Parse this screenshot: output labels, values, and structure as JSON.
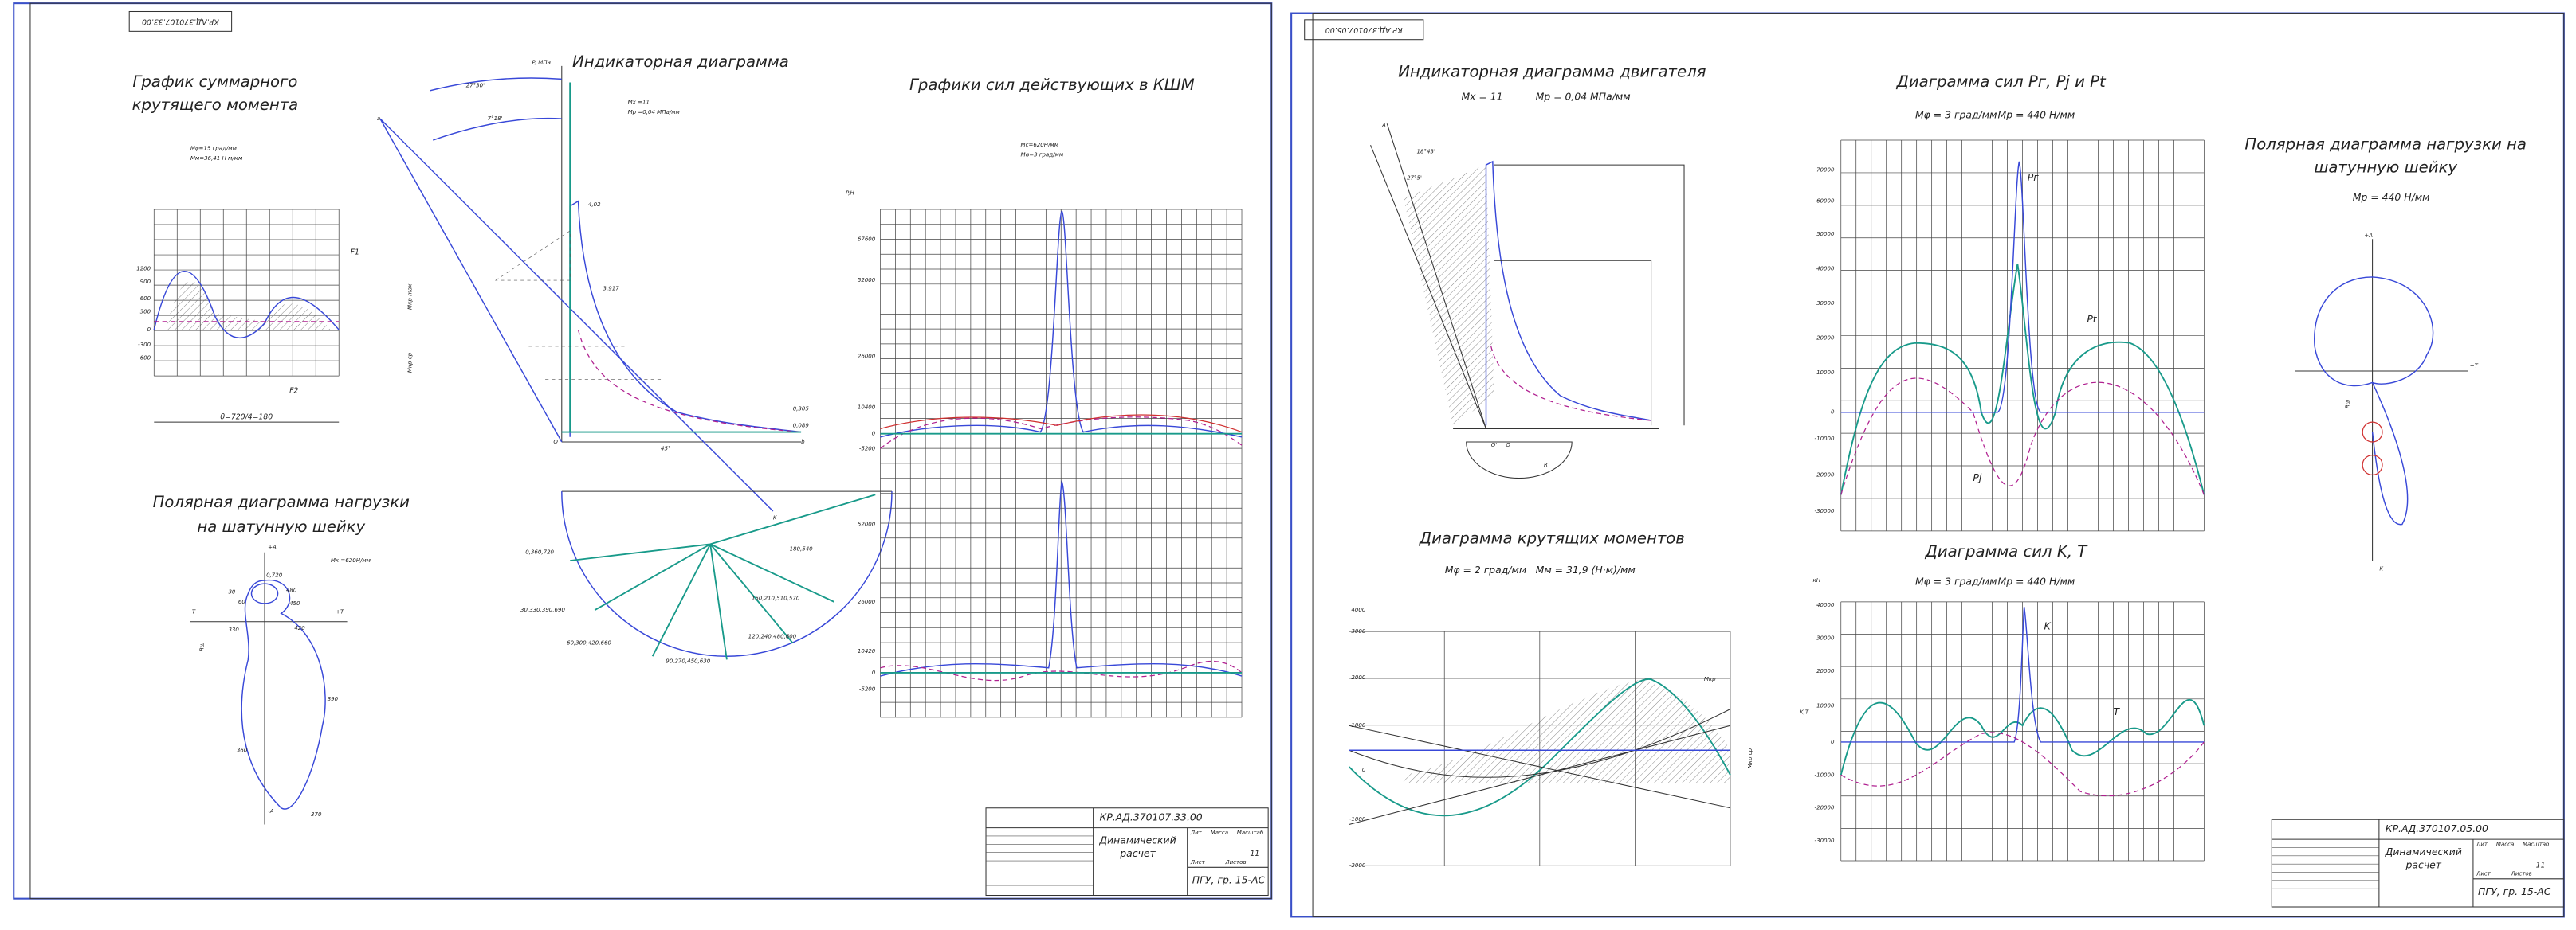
{
  "left_sheet": {
    "stamp": "КР.АД.370107.33.00",
    "torque": {
      "title": [
        "График суммарного",
        "крутящего момента"
      ],
      "scales": [
        "Мφ=15 град/мм",
        "Мм=36,41 Н·м/мм"
      ],
      "y_labels": [
        "1200",
        "900",
        "600",
        "300",
        "0",
        "-300",
        "-600"
      ],
      "labels": [
        "F1",
        "F2",
        "Мкр max",
        "Мкр ср"
      ],
      "caption": "θ=720/4=180"
    },
    "polar": {
      "title": [
        "Полярная диаграмма нагрузки",
        "на шатунную шейку"
      ],
      "scale": "Мк =620Н/мм",
      "labels": [
        "+A",
        "-A",
        "-T",
        "+T",
        "0,720",
        "30",
        "60",
        "480",
        "450",
        "330",
        "420",
        "390",
        "360",
        "370",
        "Rш"
      ]
    },
    "indicator": {
      "title": "Индикаторная диаграмма",
      "axis": "P, МПа",
      "scales": [
        "Мх =11",
        "Мр =0,04 МПа/мм"
      ],
      "labels": [
        "27°30'",
        "7°18'",
        "4,02",
        "3,917",
        "0,305",
        "0,089",
        "45°",
        "a",
        "b",
        "K",
        "O"
      ],
      "crank_labels": [
        "0,360,720",
        "30,330,390,690",
        "60,300,420,660",
        "90,270,450,630",
        "120,240,480,600",
        "150,210,510,570",
        "180,540"
      ]
    },
    "forces": {
      "title": "Графики сил действующих в КШМ",
      "scales": [
        "Мс=620Н/мм",
        "Мφ=3 град/мм"
      ],
      "axis": "P,Н",
      "y_labels_top": [
        "67600",
        "52000",
        "26000",
        "10400",
        "0",
        "-5200"
      ],
      "y_labels_bottom": [
        "52000",
        "26000",
        "10420",
        "0",
        "-5200"
      ]
    },
    "title_block": {
      "code": "КР.АД.370107.33.00",
      "name": [
        "Динамический",
        "расчет"
      ],
      "group": "ПГУ, гр. 15-АС",
      "sheet": "11",
      "heads": [
        "Лит",
        "Масса",
        "Масштаб",
        "Лист",
        "Листов"
      ]
    }
  },
  "right_sheet": {
    "stamp": "КР.АД.370107.05.00",
    "indicator": {
      "title": "Индикаторная диаграмма двигателя",
      "scales": [
        "Mх = 11",
        "Mр = 0,04 МПа/мм"
      ],
      "labels": [
        "18°43'",
        "27°5'",
        "O'",
        "O",
        "R",
        "A"
      ]
    },
    "torque": {
      "title": "Диаграмма крутящих моментов",
      "scales": [
        "Mφ = 2 град/мм",
        "Mм = 31,9 (Н·м)/мм"
      ],
      "y_labels": [
        "4000",
        "3000",
        "2000",
        "1000",
        "0",
        "-1000",
        "-2000"
      ],
      "labels": [
        "Mкр",
        "Mкр.ср"
      ]
    },
    "forces_p": {
      "title": "Диаграмма сил Pг, Pj и Pt",
      "scales": [
        "Mφ = 3 град/мм",
        "Mр = 440 Н/мм"
      ],
      "labels": [
        "Pг",
        "Pj",
        "Pt"
      ],
      "y_labels": [
        "70000",
        "60000",
        "50000",
        "40000",
        "30000",
        "20000",
        "10000",
        "0",
        "-10000",
        "-20000",
        "-30000"
      ]
    },
    "forces_kt": {
      "title": "Диаграмма сил K, T",
      "scales": [
        "Mφ = 3 град/мм",
        "Mр = 440 Н/мм"
      ],
      "axis": "кН",
      "labels": [
        "K",
        "T",
        "K,T"
      ],
      "y_labels": [
        "40000",
        "30000",
        "20000",
        "10000",
        "0",
        "-10000",
        "-20000",
        "-30000"
      ]
    },
    "polar": {
      "title": [
        "Полярная диаграмма нагрузки на",
        "шатунную шейку"
      ],
      "scale": "Mр = 440 Н/мм",
      "labels": [
        "+A",
        "-K",
        "+T",
        "Rш"
      ]
    },
    "title_block": {
      "code": "КР.АД.370107.05.00",
      "name": [
        "Динамический",
        "расчет"
      ],
      "group": "ПГУ, гр. 15-АС",
      "sheet": "11",
      "heads": [
        "Лит",
        "Масса",
        "Масштаб",
        "Лист",
        "Листов"
      ]
    }
  }
}
